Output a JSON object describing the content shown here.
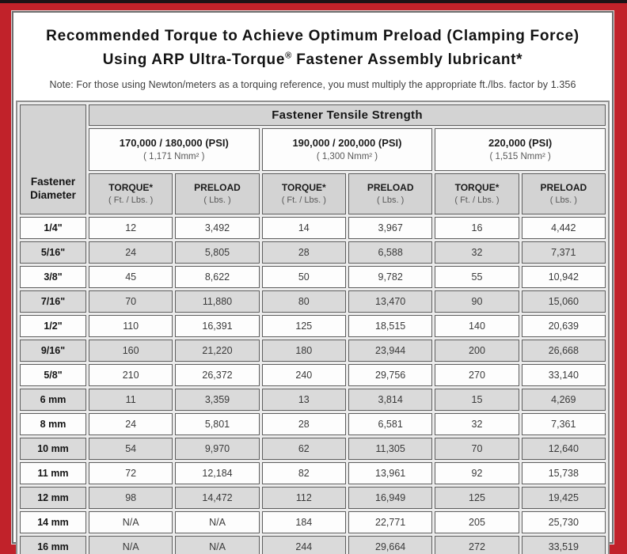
{
  "header": {
    "title_line1": "Recommended Torque to Achieve Optimum Preload (Clamping Force)",
    "title_line2_pre": "Using ARP Ultra-Torque",
    "title_line2_sup": "®",
    "title_line2_post": " Fastener Assembly lubricant*",
    "note": "Note: For those using Newton/meters as a torquing reference, you must multiply the appropriate ft./lbs. factor by 1.356"
  },
  "table": {
    "corner_label": "Fastener Diameter",
    "group_header": "Fastener Tensile Strength",
    "groups": [
      {
        "psi": "170,000 / 180,000 (PSI)",
        "nmm": "( 1,171 Nmm² )"
      },
      {
        "psi": "190,000 / 200,000 (PSI)",
        "nmm": "( 1,300 Nmm² )"
      },
      {
        "psi": "220,000 (PSI)",
        "nmm": "( 1,515 Nmm² )"
      }
    ],
    "col_headers": [
      {
        "label": "TORQUE*",
        "unit": "( Ft. / Lbs. )"
      },
      {
        "label": "PRELOAD",
        "unit": "( Lbs. )"
      },
      {
        "label": "TORQUE*",
        "unit": "( Ft. / Lbs. )"
      },
      {
        "label": "PRELOAD",
        "unit": "( Lbs. )"
      },
      {
        "label": "TORQUE*",
        "unit": "( Ft. / Lbs. )"
      },
      {
        "label": "PRELOAD",
        "unit": "( Lbs. )"
      }
    ],
    "rows": [
      {
        "dia": "1/4\"",
        "values": [
          "12",
          "3,492",
          "14",
          "3,967",
          "16",
          "4,442"
        ]
      },
      {
        "dia": "5/16\"",
        "values": [
          "24",
          "5,805",
          "28",
          "6,588",
          "32",
          "7,371"
        ]
      },
      {
        "dia": "3/8\"",
        "values": [
          "45",
          "8,622",
          "50",
          "9,782",
          "55",
          "10,942"
        ]
      },
      {
        "dia": "7/16\"",
        "values": [
          "70",
          "11,880",
          "80",
          "13,470",
          "90",
          "15,060"
        ]
      },
      {
        "dia": "1/2\"",
        "values": [
          "110",
          "16,391",
          "125",
          "18,515",
          "140",
          "20,639"
        ]
      },
      {
        "dia": "9/16\"",
        "values": [
          "160",
          "21,220",
          "180",
          "23,944",
          "200",
          "26,668"
        ]
      },
      {
        "dia": "5/8\"",
        "values": [
          "210",
          "26,372",
          "240",
          "29,756",
          "270",
          "33,140"
        ]
      },
      {
        "dia": "6 mm",
        "values": [
          "11",
          "3,359",
          "13",
          "3,814",
          "15",
          "4,269"
        ]
      },
      {
        "dia": "8 mm",
        "values": [
          "24",
          "5,801",
          "28",
          "6,581",
          "32",
          "7,361"
        ]
      },
      {
        "dia": "10 mm",
        "values": [
          "54",
          "9,970",
          "62",
          "11,305",
          "70",
          "12,640"
        ]
      },
      {
        "dia": "11 mm",
        "values": [
          "72",
          "12,184",
          "82",
          "13,961",
          "92",
          "15,738"
        ]
      },
      {
        "dia": "12 mm",
        "values": [
          "98",
          "14,472",
          "112",
          "16,949",
          "125",
          "19,425"
        ]
      },
      {
        "dia": "14 mm",
        "values": [
          "N/A",
          "N/A",
          "184",
          "22,771",
          "205",
          "25,730"
        ]
      },
      {
        "dia": "16 mm",
        "values": [
          "N/A",
          "N/A",
          "244",
          "29,664",
          "272",
          "33,519"
        ]
      }
    ]
  },
  "colors": {
    "frame_red": "#c1222a",
    "top_strip_black": "#1c1316",
    "header_gray": "#d3d3d3",
    "row_alt_gray": "#dadada",
    "cell_white": "#fdfdfd"
  }
}
